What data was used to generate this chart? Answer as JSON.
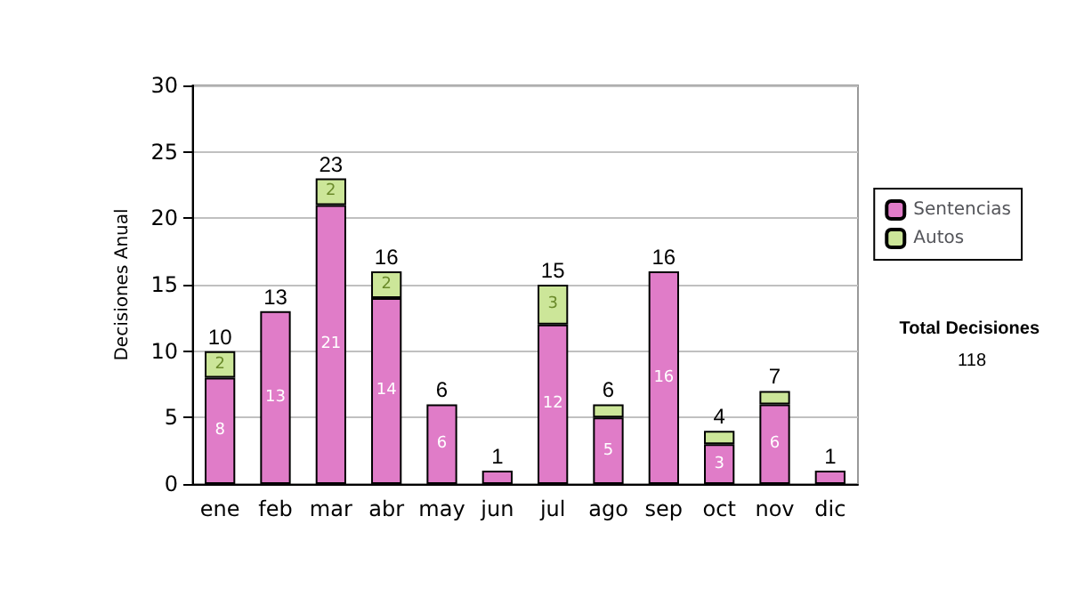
{
  "chart_data": {
    "type": "bar",
    "stacked": true,
    "ylabel": "Decisiones Anual",
    "categories": [
      "ene",
      "feb",
      "mar",
      "abr",
      "may",
      "jun",
      "jul",
      "ago",
      "sep",
      "oct",
      "nov",
      "dic"
    ],
    "series": [
      {
        "name": "Sentencias",
        "color": "#e07cc8",
        "values": [
          8,
          13,
          21,
          14,
          6,
          1,
          12,
          5,
          16,
          3,
          6,
          1
        ],
        "value_labels": [
          "8",
          "13",
          "21",
          "14",
          "6",
          null,
          "12",
          "5",
          "16",
          "3",
          "6",
          null
        ]
      },
      {
        "name": "Autos",
        "color": "#cce699",
        "values": [
          2,
          null,
          2,
          2,
          null,
          null,
          3,
          1,
          null,
          1,
          1,
          null
        ],
        "value_labels": [
          "2",
          null,
          "2",
          "2",
          null,
          null,
          "3",
          null,
          null,
          null,
          null,
          null
        ]
      }
    ],
    "totals": [
      "10",
      "13",
      "23",
      "16",
      "6",
      "1",
      "15",
      "6",
      "16",
      "4",
      "7",
      "1"
    ],
    "ylim": [
      0,
      30
    ],
    "yticks": [
      0,
      5,
      10,
      15,
      20,
      25,
      30
    ],
    "grid": "y",
    "legend": "right",
    "annotations": [
      "Total Decisiones",
      "118"
    ]
  }
}
